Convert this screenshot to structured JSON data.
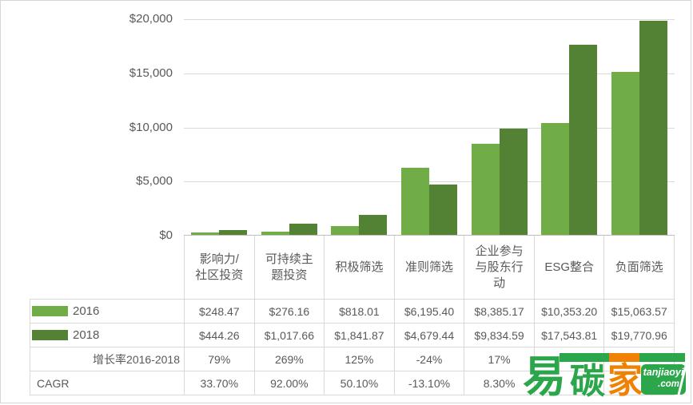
{
  "chart_data": {
    "type": "bar",
    "title": "",
    "xlabel": "",
    "ylabel": "",
    "ylim": [
      0,
      20000
    ],
    "grid": true,
    "legend_position": "data-table-left",
    "y_ticks": [
      "$20,000",
      "$15,000",
      "$10,000",
      "$5,000",
      "$0"
    ],
    "categories": [
      "影响力/\n社区投资",
      "可持续主\n题投资",
      "积极筛选",
      "准则筛选",
      "企业参与\n与股东行\n动",
      "ESG整合",
      "负面筛选"
    ],
    "series": [
      {
        "name": "2016",
        "color": "#70AD47",
        "values": [
          248.47,
          276.16,
          818.01,
          6195.4,
          8385.17,
          10353.2,
          15063.57
        ]
      },
      {
        "name": "2018",
        "color": "#548235",
        "values": [
          444.26,
          1017.66,
          1841.87,
          4679.44,
          9834.59,
          17543.81,
          19770.96
        ]
      }
    ]
  },
  "table": {
    "rows": [
      {
        "label": "2016",
        "swatch": "#70AD47",
        "cells": [
          "$248.47",
          "$276.16",
          "$818.01",
          "$6,195.40",
          "$8,385.17",
          "$10,353.20",
          "$15,063.57"
        ]
      },
      {
        "label": "2018",
        "swatch": "#548235",
        "cells": [
          "$444.26",
          "$1,017.66",
          "$1,841.87",
          "$4,679.44",
          "$9,834.59",
          "$17,543.81",
          "$19,770.96"
        ]
      },
      {
        "label": "增长率2016-2018",
        "cells": [
          "79%",
          "269%",
          "125%",
          "-24%",
          "17%",
          "",
          ""
        ]
      },
      {
        "label": "CAGR",
        "cells": [
          "33.70%",
          "92.00%",
          "50.10%",
          "-13.10%",
          "8.30%",
          "",
          ""
        ]
      }
    ]
  },
  "watermark": {
    "char_yi": "易",
    "char_tan": "碳",
    "char_jia": "家",
    "box_line1": "tanjiaoyi",
    "box_line2": ".com",
    "green": "#2BA64A",
    "orange": "#F18102"
  }
}
